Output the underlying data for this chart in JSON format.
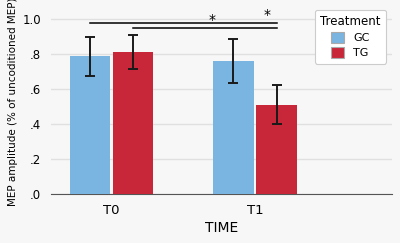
{
  "groups": [
    "T0",
    "T1"
  ],
  "gc_values": [
    0.785,
    0.76
  ],
  "tg_values": [
    0.81,
    0.51
  ],
  "gc_errors": [
    0.11,
    0.125
  ],
  "tg_errors": [
    0.095,
    0.11
  ],
  "gc_color": "#7ab4e0",
  "tg_color": "#c8273a",
  "bar_width": 0.28,
  "ylim": [
    0,
    1.05
  ],
  "yticks": [
    0.0,
    0.2,
    0.4,
    0.6,
    0.8,
    1.0
  ],
  "ytick_labels": [
    ".0",
    ".2",
    ".4",
    ".6",
    ".8",
    "1.0"
  ],
  "xlabel": "TIME",
  "ylabel": "MEP amplitude (% of uncoditioned MEP)",
  "legend_title": "Treatment",
  "legend_labels": [
    "GC",
    "TG"
  ],
  "background_color": "#f7f7f7",
  "grid_color": "#e0e0e0"
}
